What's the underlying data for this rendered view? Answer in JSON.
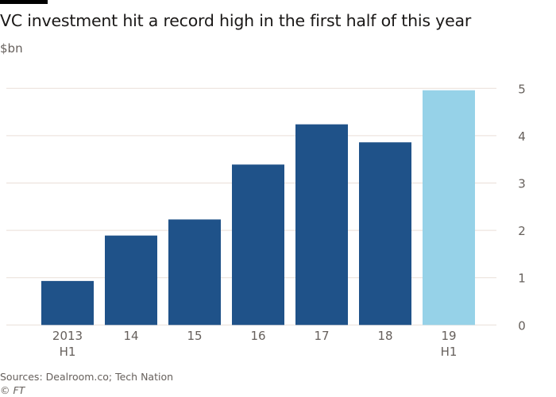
{
  "title": "VC investment hit a record high in the first half of this year",
  "unit": "$bn",
  "source": "Sources: Dealroom.co; Tech Nation",
  "copyright": "© FT",
  "colors": {
    "bar": "#1f5289",
    "highlight": "#96d2e8",
    "grid": "#e9dfd8",
    "axis": "#66605c"
  },
  "chart_data": {
    "type": "bar",
    "title": "VC investment hit a record high in the first half of this year",
    "ylabel": "$bn",
    "xlabel": "",
    "categories": [
      [
        "2013",
        "H1"
      ],
      [
        "14",
        ""
      ],
      [
        "15",
        ""
      ],
      [
        "16",
        ""
      ],
      [
        "17",
        ""
      ],
      [
        "18",
        ""
      ],
      [
        "19",
        "H1"
      ]
    ],
    "values": [
      0.93,
      1.89,
      2.23,
      3.39,
      4.24,
      3.86,
      4.96
    ],
    "highlight": [
      false,
      false,
      false,
      false,
      false,
      false,
      true
    ],
    "ylim": [
      0,
      5
    ],
    "yticks": [
      "0",
      "1",
      "2",
      "3",
      "4",
      "5"
    ],
    "grid": true,
    "yaxis_position": "right"
  }
}
